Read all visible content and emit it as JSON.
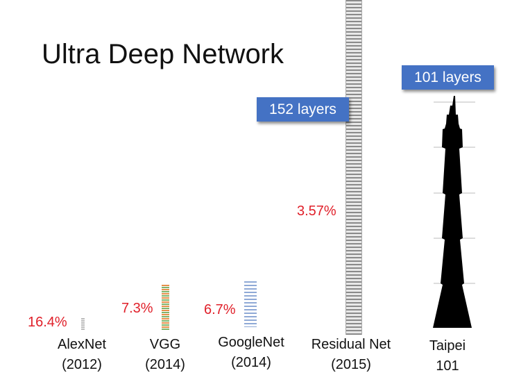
{
  "title": "Ultra Deep Network",
  "badges": [
    "152 layers",
    "101 layers"
  ],
  "models": [
    {
      "label": [
        "AlexNet",
        "(2012)"
      ],
      "error": "16.4%"
    },
    {
      "label": [
        "VGG",
        "(2014)"
      ],
      "error": "7.3%"
    },
    {
      "label": [
        "GoogleNet",
        "(2014)"
      ],
      "error": "6.7%"
    },
    {
      "label": [
        "Residual Net",
        "(2015)"
      ],
      "error": "3.57%"
    },
    {
      "label": [
        "Taipei",
        "101"
      ]
    }
  ]
}
